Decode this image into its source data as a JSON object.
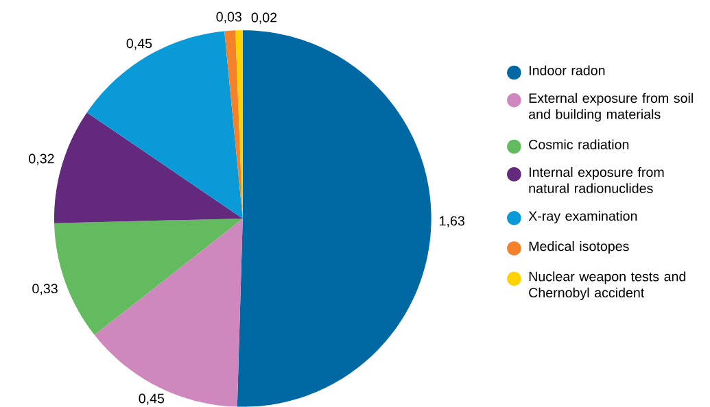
{
  "chart_data": {
    "type": "pie",
    "categories": [
      "Indoor radon",
      "External exposure from soil and building materials",
      "Cosmic radiation",
      "Internal exposure from natural radionuclides",
      "X-ray examination",
      "Medical isotopes",
      "Nuclear weapon tests and Chernobyl accident"
    ],
    "values": [
      1.63,
      0.45,
      0.33,
      0.32,
      0.45,
      0.03,
      0.02
    ],
    "value_labels": [
      "1,63",
      "0,45",
      "0,33",
      "0,32",
      "0,45",
      "0,03",
      "0,02"
    ],
    "colors": [
      "#0069a3",
      "#cf88bd",
      "#64bb5f",
      "#62297d",
      "#0b9ad8",
      "#f5822a",
      "#ffd200"
    ],
    "legend": "right"
  }
}
